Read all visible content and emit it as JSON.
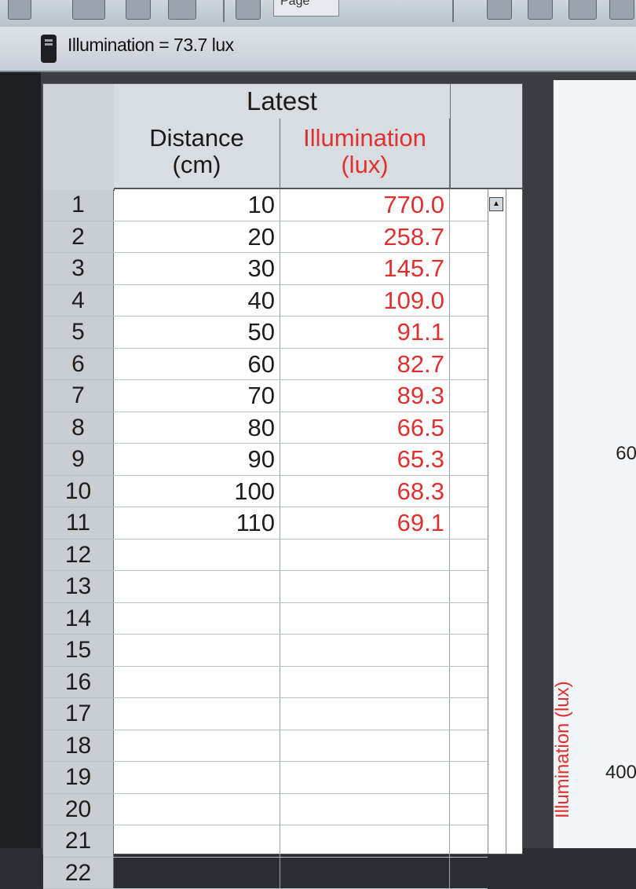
{
  "toolbar": {
    "page_label": "Page"
  },
  "meter": {
    "readout": "Illumination = 73.7 lux"
  },
  "table": {
    "group_header": "Latest",
    "columns": [
      {
        "name": "Distance",
        "unit": "(cm)"
      },
      {
        "name": "Illumination",
        "unit": "(lux)"
      }
    ],
    "rows": [
      {
        "n": "1",
        "distance": "10",
        "illumination": "770.0"
      },
      {
        "n": "2",
        "distance": "20",
        "illumination": "258.7"
      },
      {
        "n": "3",
        "distance": "30",
        "illumination": "145.7"
      },
      {
        "n": "4",
        "distance": "40",
        "illumination": "109.0"
      },
      {
        "n": "5",
        "distance": "50",
        "illumination": "91.1"
      },
      {
        "n": "6",
        "distance": "60",
        "illumination": "82.7"
      },
      {
        "n": "7",
        "distance": "70",
        "illumination": "89.3"
      },
      {
        "n": "8",
        "distance": "80",
        "illumination": "66.5"
      },
      {
        "n": "9",
        "distance": "90",
        "illumination": "65.3"
      },
      {
        "n": "10",
        "distance": "100",
        "illumination": "68.3"
      },
      {
        "n": "11",
        "distance": "110",
        "illumination": "69.1"
      },
      {
        "n": "12",
        "distance": "",
        "illumination": ""
      },
      {
        "n": "13",
        "distance": "",
        "illumination": ""
      },
      {
        "n": "14",
        "distance": "",
        "illumination": ""
      },
      {
        "n": "15",
        "distance": "",
        "illumination": ""
      },
      {
        "n": "16",
        "distance": "",
        "illumination": ""
      },
      {
        "n": "17",
        "distance": "",
        "illumination": ""
      },
      {
        "n": "18",
        "distance": "",
        "illumination": ""
      },
      {
        "n": "19",
        "distance": "",
        "illumination": ""
      },
      {
        "n": "20",
        "distance": "",
        "illumination": ""
      },
      {
        "n": "21",
        "distance": "",
        "illumination": ""
      },
      {
        "n": "22",
        "distance": "",
        "illumination": ""
      }
    ]
  },
  "graph": {
    "tick_600": "60",
    "tick_400": "400",
    "ylabel": "Illumination (lux)"
  },
  "colors": {
    "illumination_red": "#e03030"
  }
}
